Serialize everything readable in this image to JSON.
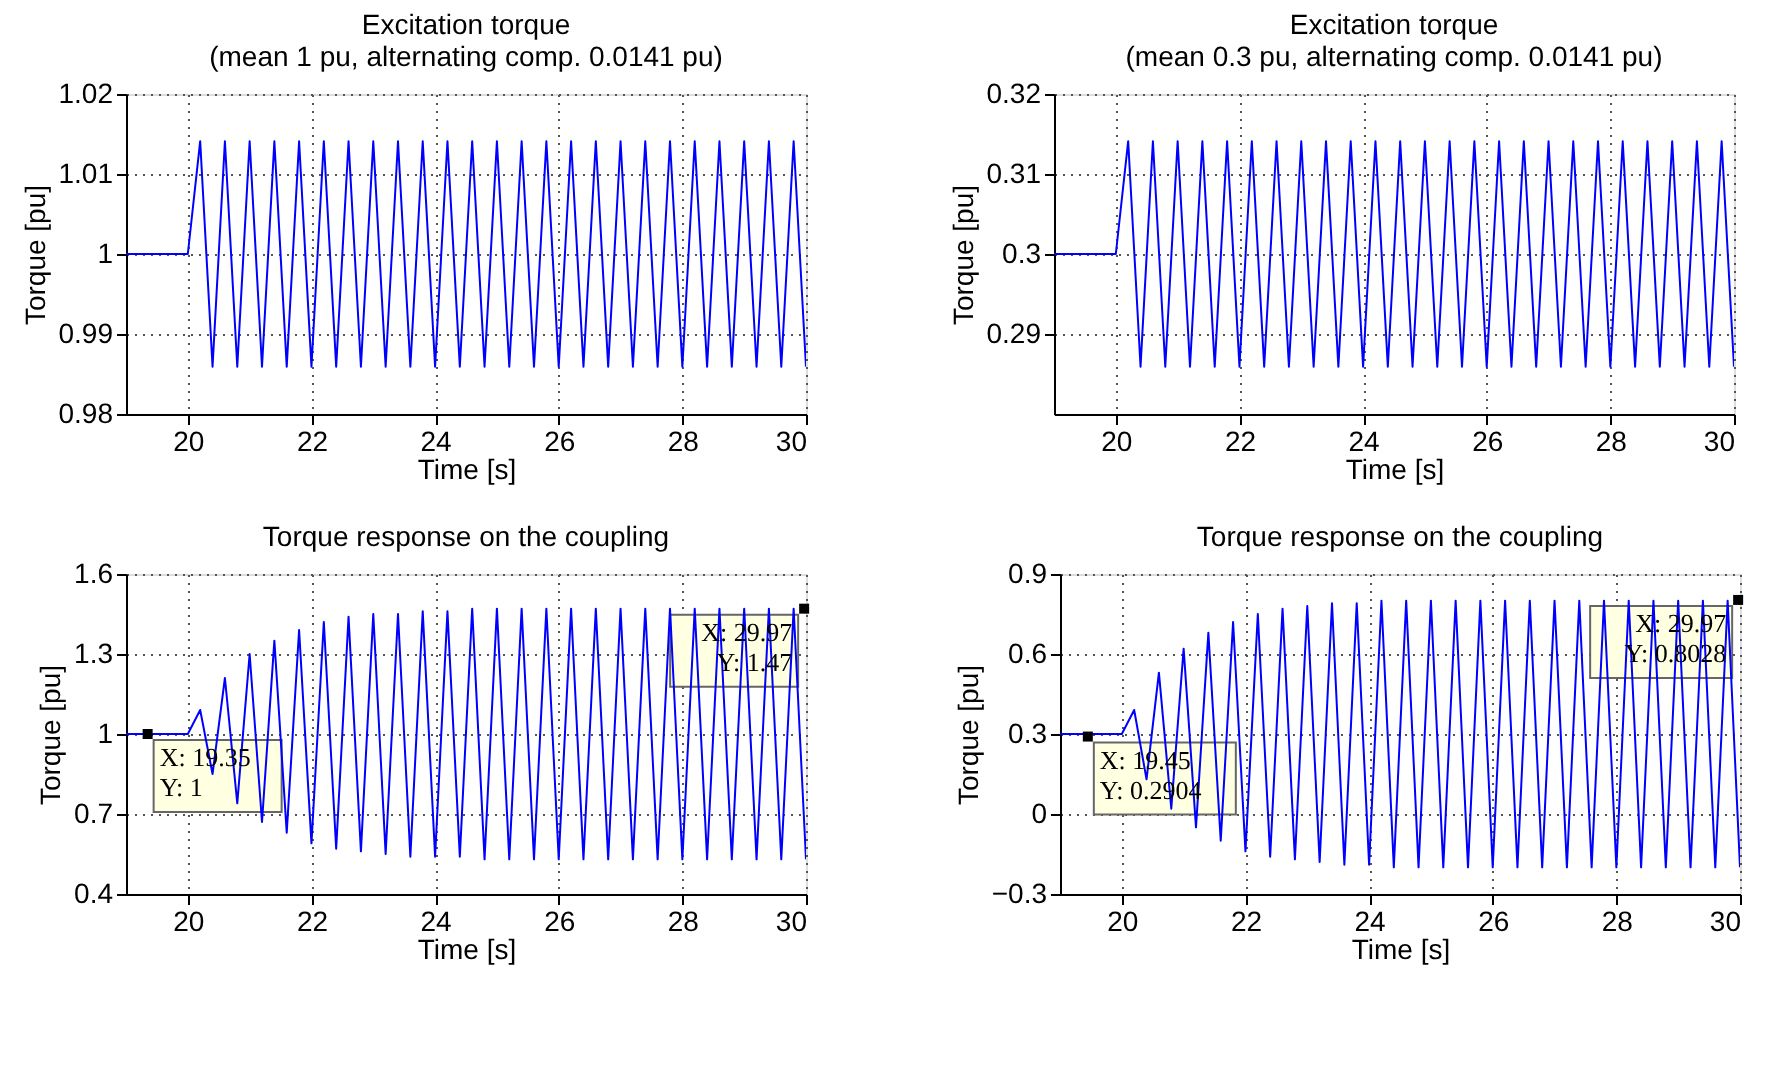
{
  "chart_data": [
    {
      "type": "line",
      "title": "Excitation torque\n(mean 1 pu, alternating comp. 0.0141 pu)",
      "xlabel": "Time [s]",
      "ylabel": "Torque [pu]",
      "xlim": [
        19,
        30
      ],
      "xticks": [
        20,
        22,
        24,
        26,
        28,
        30
      ],
      "ylim": [
        0.98,
        1.02
      ],
      "yticks": [
        0.98,
        0.99,
        1,
        1.01,
        1.02
      ],
      "grid": true,
      "x": [
        19,
        20,
        20.2,
        20.4,
        20.6,
        20.8,
        21,
        21.2,
        21.4,
        21.6,
        21.8,
        22,
        22.2,
        22.4,
        22.6,
        22.8,
        23,
        23.2,
        23.4,
        23.6,
        23.8,
        24,
        24.2,
        24.4,
        24.6,
        24.8,
        25,
        25.2,
        25.4,
        25.6,
        25.8,
        26,
        26.2,
        26.4,
        26.6,
        26.8,
        27,
        27.2,
        27.4,
        27.6,
        27.8,
        28,
        28.2,
        28.4,
        28.6,
        28.8,
        29,
        29.2,
        29.4,
        29.6,
        29.8,
        30
      ],
      "series": [
        {
          "color": "#0000ff",
          "values": [
            1,
            1,
            1.0141,
            0.9859,
            1.0141,
            0.9859,
            1.0141,
            0.9859,
            1.0141,
            0.9859,
            1.0141,
            0.9859,
            1.0141,
            0.9859,
            1.0141,
            0.9859,
            1.0141,
            0.9859,
            1.0141,
            0.9859,
            1.0141,
            0.9859,
            1.0141,
            0.9859,
            1.0141,
            0.9859,
            1.0141,
            0.9859,
            1.0141,
            0.9859,
            1.0141,
            0.9859,
            1.0141,
            0.9859,
            1.0141,
            0.9859,
            1.0141,
            0.9859,
            1.0141,
            0.9859,
            1.0141,
            0.9859,
            1.0141,
            0.9859,
            1.0141,
            0.9859,
            1.0141,
            0.9859,
            1.0141,
            0.9859,
            1.0141,
            0.9859
          ]
        }
      ]
    },
    {
      "type": "line",
      "title": "Excitation torque\n(mean 0.3 pu, alternating comp. 0.0141 pu)",
      "xlabel": "Time [s]",
      "ylabel": "Torque [pu]",
      "xlim": [
        19,
        30
      ],
      "xticks": [
        20,
        22,
        24,
        26,
        28,
        30
      ],
      "ylim": [
        0.28,
        0.32
      ],
      "yticks": [
        0.29,
        0.3,
        0.31,
        0.32
      ],
      "grid": true,
      "x": [
        19,
        20,
        20.2,
        20.4,
        20.6,
        20.8,
        21,
        21.2,
        21.4,
        21.6,
        21.8,
        22,
        22.2,
        22.4,
        22.6,
        22.8,
        23,
        23.2,
        23.4,
        23.6,
        23.8,
        24,
        24.2,
        24.4,
        24.6,
        24.8,
        25,
        25.2,
        25.4,
        25.6,
        25.8,
        26,
        26.2,
        26.4,
        26.6,
        26.8,
        27,
        27.2,
        27.4,
        27.6,
        27.8,
        28,
        28.2,
        28.4,
        28.6,
        28.8,
        29,
        29.2,
        29.4,
        29.6,
        29.8,
        30
      ],
      "series": [
        {
          "color": "#0000ff",
          "values": [
            0.3,
            0.3,
            0.3141,
            0.2859,
            0.3141,
            0.2859,
            0.3141,
            0.2859,
            0.3141,
            0.2859,
            0.3141,
            0.2859,
            0.3141,
            0.2859,
            0.3141,
            0.2859,
            0.3141,
            0.2859,
            0.3141,
            0.2859,
            0.3141,
            0.2859,
            0.3141,
            0.2859,
            0.3141,
            0.2859,
            0.3141,
            0.2859,
            0.3141,
            0.2859,
            0.3141,
            0.2859,
            0.3141,
            0.2859,
            0.3141,
            0.2859,
            0.3141,
            0.2859,
            0.3141,
            0.2859,
            0.3141,
            0.2859,
            0.3141,
            0.2859,
            0.3141,
            0.2859,
            0.3141,
            0.2859,
            0.3141,
            0.2859,
            0.3141,
            0.2859
          ]
        }
      ]
    },
    {
      "type": "line",
      "title": "Torque response on the coupling",
      "xlabel": "Time [s]",
      "ylabel": "Torque [pu]",
      "xlim": [
        19,
        30
      ],
      "xticks": [
        20,
        22,
        24,
        26,
        28,
        30
      ],
      "ylim": [
        0.4,
        1.6
      ],
      "yticks": [
        0.4,
        0.7,
        1,
        1.3,
        1.6
      ],
      "grid": true,
      "x": [
        19,
        20,
        20.2,
        20.4,
        20.6,
        20.8,
        21,
        21.2,
        21.4,
        21.6,
        21.8,
        22,
        22.2,
        22.4,
        22.6,
        22.8,
        23,
        23.2,
        23.4,
        23.6,
        23.8,
        24,
        24.2,
        24.4,
        24.6,
        24.8,
        25,
        25.2,
        25.4,
        25.6,
        25.8,
        26,
        26.2,
        26.4,
        26.6,
        26.8,
        27,
        27.2,
        27.4,
        27.6,
        27.8,
        28,
        28.2,
        28.4,
        28.6,
        28.8,
        29,
        29.2,
        29.4,
        29.6,
        29.8,
        30
      ],
      "series": [
        {
          "color": "#0000ff",
          "values": [
            1,
            1,
            1.09,
            0.85,
            1.21,
            0.74,
            1.3,
            0.67,
            1.35,
            0.63,
            1.39,
            0.59,
            1.42,
            0.57,
            1.44,
            0.56,
            1.45,
            0.55,
            1.45,
            0.54,
            1.46,
            0.54,
            1.46,
            0.54,
            1.47,
            0.53,
            1.47,
            0.53,
            1.47,
            0.53,
            1.47,
            0.53,
            1.47,
            0.53,
            1.47,
            0.53,
            1.47,
            0.53,
            1.47,
            0.53,
            1.47,
            0.53,
            1.47,
            0.53,
            1.47,
            0.53,
            1.47,
            0.53,
            1.47,
            0.53,
            1.47,
            0.53
          ]
        }
      ],
      "annotations": [
        {
          "text": "X: 19.35\nY: 1",
          "x": 19.35,
          "y": 1
        },
        {
          "text": "X: 29.97\nY: 1.47",
          "x": 29.97,
          "y": 1.47
        }
      ]
    },
    {
      "type": "line",
      "title": "Torque response on the coupling",
      "xlabel": "Time [s]",
      "ylabel": "Torque [pu]",
      "xlim": [
        19,
        30
      ],
      "xticks": [
        20,
        22,
        24,
        26,
        28,
        30
      ],
      "ylim": [
        -0.3,
        0.9
      ],
      "yticks": [
        -0.3,
        0,
        0.3,
        0.6,
        0.9
      ],
      "grid": true,
      "x": [
        19,
        20,
        20.2,
        20.4,
        20.6,
        20.8,
        21,
        21.2,
        21.4,
        21.6,
        21.8,
        22,
        22.2,
        22.4,
        22.6,
        22.8,
        23,
        23.2,
        23.4,
        23.6,
        23.8,
        24,
        24.2,
        24.4,
        24.6,
        24.8,
        25,
        25.2,
        25.4,
        25.6,
        25.8,
        26,
        26.2,
        26.4,
        26.6,
        26.8,
        27,
        27.2,
        27.4,
        27.6,
        27.8,
        28,
        28.2,
        28.4,
        28.6,
        28.8,
        29,
        29.2,
        29.4,
        29.6,
        29.8,
        30
      ],
      "series": [
        {
          "color": "#0000ff",
          "values": [
            0.3,
            0.3,
            0.39,
            0.13,
            0.53,
            0.02,
            0.62,
            -0.05,
            0.68,
            -0.1,
            0.72,
            -0.14,
            0.75,
            -0.16,
            0.77,
            -0.17,
            0.78,
            -0.18,
            0.79,
            -0.19,
            0.79,
            -0.19,
            0.8,
            -0.2,
            0.8,
            -0.2,
            0.8,
            -0.2,
            0.8,
            -0.2,
            0.8,
            -0.2,
            0.8,
            -0.2,
            0.8,
            -0.2,
            0.8,
            -0.2,
            0.8,
            -0.2,
            0.8,
            -0.2,
            0.8,
            -0.2,
            0.8,
            -0.2,
            0.8,
            -0.2,
            0.8,
            -0.2,
            0.8,
            -0.2
          ]
        }
      ],
      "annotations": [
        {
          "text": "X: 19.45\nY: 0.2904",
          "x": 19.45,
          "y": 0.2904
        },
        {
          "text": "X: 29.97\nY: 0.8028",
          "x": 29.97,
          "y": 0.8028
        }
      ]
    }
  ]
}
